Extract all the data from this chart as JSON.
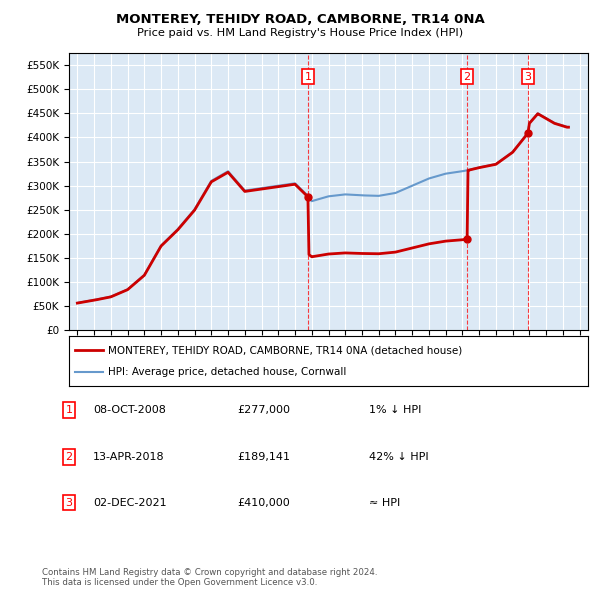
{
  "title": "MONTEREY, TEHIDY ROAD, CAMBORNE, TR14 0NA",
  "subtitle": "Price paid vs. HM Land Registry's House Price Index (HPI)",
  "ylim": [
    0,
    575000
  ],
  "yticks": [
    0,
    50000,
    100000,
    150000,
    200000,
    250000,
    300000,
    350000,
    400000,
    450000,
    500000,
    550000
  ],
  "xlim": [
    1994.5,
    2025.5
  ],
  "bg_color": "#dce9f5",
  "grid_color": "#ffffff",
  "sale_points": [
    {
      "year": 2008.77,
      "price": 277000,
      "label": "1"
    },
    {
      "year": 2018.28,
      "price": 189141,
      "label": "2"
    },
    {
      "year": 2021.92,
      "price": 410000,
      "label": "3"
    }
  ],
  "legend_entries": [
    {
      "label": "MONTEREY, TEHIDY ROAD, CAMBORNE, TR14 0NA (detached house)",
      "color": "#cc0000",
      "lw": 2
    },
    {
      "label": "HPI: Average price, detached house, Cornwall",
      "color": "#6699cc",
      "lw": 1.5
    }
  ],
  "table_rows": [
    {
      "num": "1",
      "date": "08-OCT-2008",
      "price": "£277,000",
      "note": "1% ↓ HPI"
    },
    {
      "num": "2",
      "date": "13-APR-2018",
      "price": "£189,141",
      "note": "42% ↓ HPI"
    },
    {
      "num": "3",
      "date": "02-DEC-2021",
      "price": "£410,000",
      "note": "≈ HPI"
    }
  ],
  "footnote": "Contains HM Land Registry data © Crown copyright and database right 2024.\nThis data is licensed under the Open Government Licence v3.0."
}
